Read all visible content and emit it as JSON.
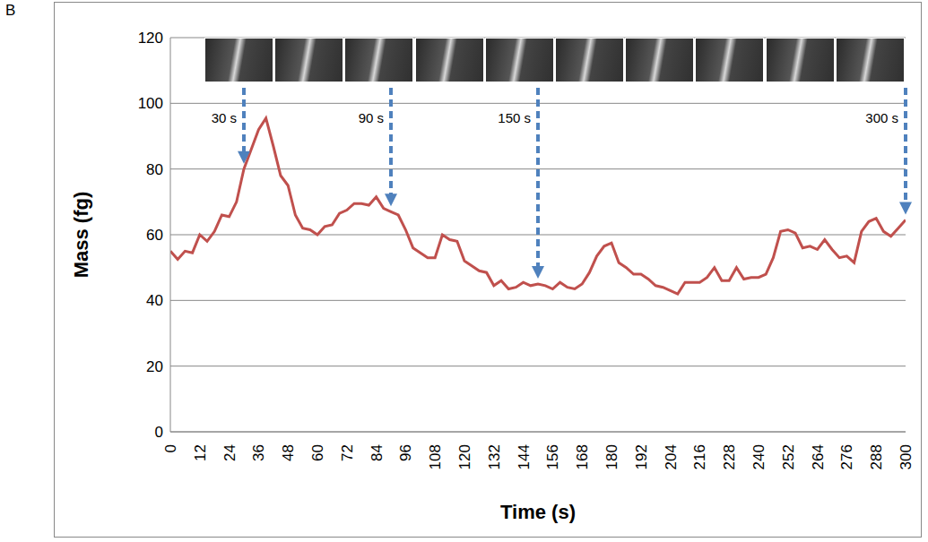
{
  "chart_data": {
    "type": "line",
    "panel_label": "B",
    "x_label": "Time (s)",
    "y_label": "Mass (fg)",
    "x": [
      0,
      3,
      6,
      9,
      12,
      15,
      18,
      21,
      24,
      27,
      30,
      33,
      36,
      39,
      42,
      45,
      48,
      51,
      54,
      57,
      60,
      63,
      66,
      69,
      72,
      75,
      78,
      81,
      84,
      87,
      90,
      93,
      96,
      99,
      102,
      105,
      108,
      111,
      114,
      117,
      120,
      123,
      126,
      129,
      132,
      135,
      138,
      141,
      144,
      147,
      150,
      153,
      156,
      159,
      162,
      165,
      168,
      171,
      174,
      177,
      180,
      183,
      186,
      189,
      192,
      195,
      198,
      201,
      204,
      207,
      210,
      213,
      216,
      219,
      222,
      225,
      228,
      231,
      234,
      237,
      240,
      243,
      246,
      249,
      252,
      255,
      258,
      261,
      264,
      267,
      270,
      273,
      276,
      279,
      282,
      285,
      288,
      291,
      294,
      297,
      300
    ],
    "series": [
      {
        "name": "Mass",
        "color": "#c0504d",
        "values": [
          55,
          52.5,
          55,
          54.5,
          60,
          58,
          61,
          66,
          65.5,
          70,
          80,
          86,
          92,
          95.5,
          87,
          78,
          75,
          66,
          62,
          61.5,
          60,
          62.5,
          63,
          66.5,
          67.5,
          69.5,
          69.5,
          69,
          71.5,
          68,
          67,
          66,
          61.5,
          56,
          54.5,
          53,
          53,
          60,
          58.5,
          58,
          52,
          50.5,
          49,
          48.5,
          44.5,
          46,
          43.5,
          44,
          45.5,
          44.5,
          45,
          44.5,
          43.5,
          45.5,
          44,
          43.5,
          45,
          48.5,
          53.5,
          56.5,
          57.5,
          51.5,
          50,
          48,
          48,
          46.5,
          44.5,
          44,
          43,
          42,
          45.5,
          45.5,
          45.5,
          47,
          50,
          46,
          46,
          50,
          46.5,
          47,
          47,
          48,
          53,
          61,
          61.5,
          60.5,
          56,
          56.5,
          55.5,
          58.5,
          55.5,
          53,
          53.5,
          51.5,
          61,
          64,
          65,
          61,
          59.5,
          62,
          64.5
        ]
      }
    ],
    "xlim": [
      0,
      300
    ],
    "xticks": [
      0,
      12,
      24,
      36,
      48,
      60,
      72,
      84,
      96,
      108,
      120,
      132,
      144,
      156,
      168,
      180,
      192,
      204,
      216,
      228,
      240,
      252,
      264,
      276,
      288,
      300
    ],
    "ylim": [
      0,
      120
    ],
    "yticks": [
      0,
      20,
      40,
      60,
      80,
      100,
      120
    ],
    "grid": true,
    "annotations": [
      {
        "text": "30 s",
        "x": 30
      },
      {
        "text": "90 s",
        "x": 90
      },
      {
        "text": "150 s",
        "x": 150
      },
      {
        "text": "300 s",
        "x": 300
      }
    ]
  }
}
